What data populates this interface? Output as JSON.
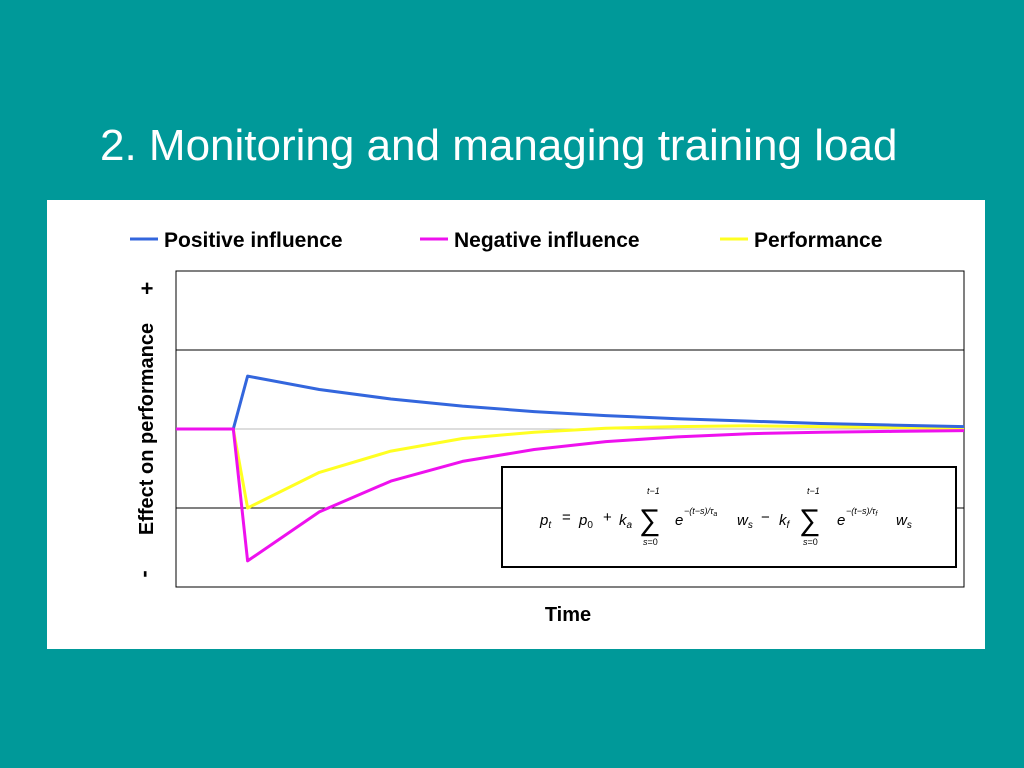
{
  "slide": {
    "background_color": "#009999",
    "title": "2. Monitoring and managing training load"
  },
  "chart_data": {
    "type": "line",
    "xlabel": "Time",
    "ylabel": "Effect on performance",
    "y_axis_end_labels": {
      "top": "+",
      "bottom": "-"
    },
    "x": [
      0,
      4,
      5,
      10,
      15,
      20,
      25,
      30,
      35,
      40,
      45,
      50,
      55
    ],
    "xlim": [
      0,
      55
    ],
    "ylim": [
      -2,
      2
    ],
    "grid": true,
    "legend_position": "top",
    "series": [
      {
        "name": "Positive influence",
        "color": "#3366dd",
        "values": [
          0,
          0,
          0.67,
          0.5,
          0.38,
          0.29,
          0.22,
          0.17,
          0.13,
          0.1,
          0.07,
          0.05,
          0.03
        ]
      },
      {
        "name": "Negative influence",
        "color": "#ee11ee",
        "values": [
          0,
          0,
          -1.67,
          -1.05,
          -0.66,
          -0.41,
          -0.26,
          -0.16,
          -0.1,
          -0.06,
          -0.04,
          -0.03,
          -0.02
        ]
      },
      {
        "name": "Performance",
        "color": "#ffff22",
        "values": [
          0,
          0,
          -1.0,
          -0.55,
          -0.28,
          -0.12,
          -0.04,
          0.01,
          0.03,
          0.04,
          0.03,
          0.02,
          0.01
        ]
      }
    ],
    "annotation": {
      "type": "formula",
      "text": "p_t = p_0 + k_a Σ_{s=0}^{t−1} e^{−(t−s)/τ_a} w_s − k_f Σ_{s=0}^{t−1} e^{−(t−s)/τ_f} w_s"
    }
  }
}
